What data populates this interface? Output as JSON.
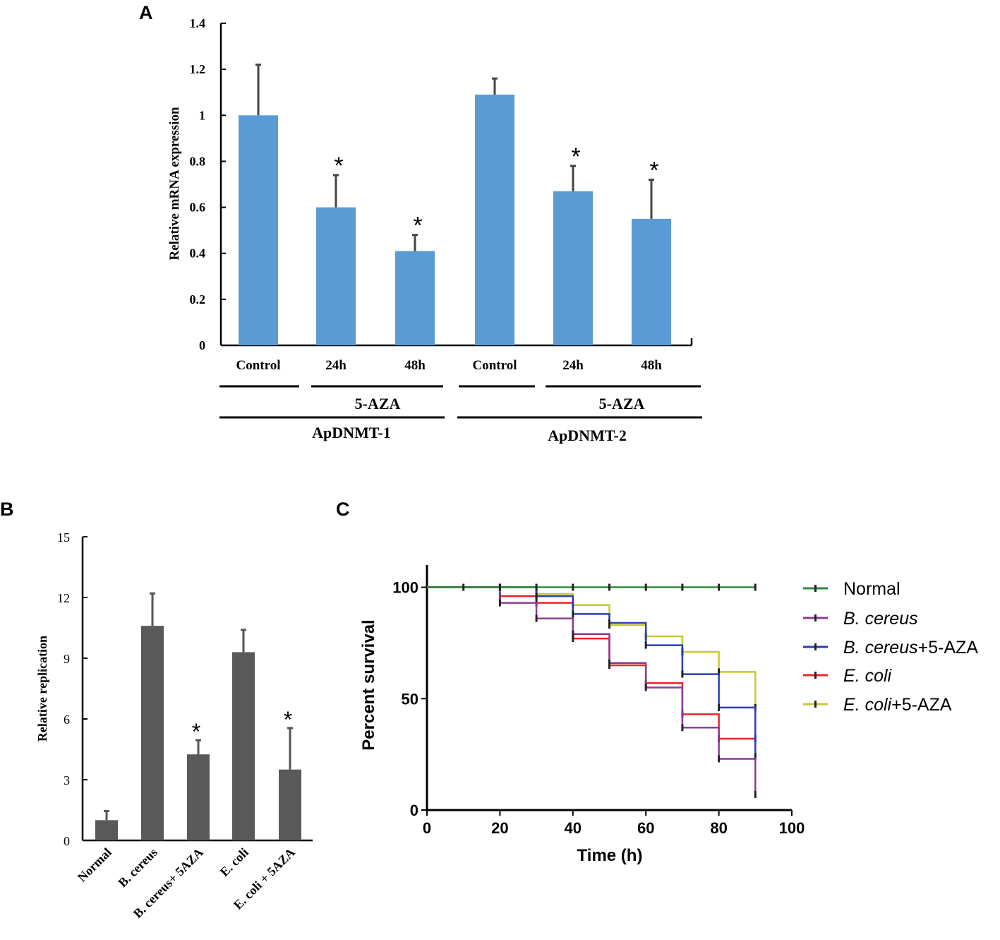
{
  "figure": {
    "panels": [
      "A",
      "B",
      "C"
    ]
  },
  "colors": {
    "barA": "#5b9bd5",
    "barB": "#595959",
    "axis": "#000000"
  },
  "chart_data": [
    {
      "panel": "A",
      "type": "bar",
      "title": "",
      "ylabel": "Relative mRNA expression",
      "xlabel": "",
      "ylim": [
        0,
        1.4
      ],
      "yticks": [
        0,
        0.2,
        0.4,
        0.6,
        0.8,
        1,
        1.2,
        1.4
      ],
      "ytick_labels": [
        "0",
        "0.2",
        "0.4",
        "0.6",
        "0.8",
        "1",
        "1.2",
        "1.4"
      ],
      "categories": [
        "Control",
        "24h",
        "48h",
        "Control",
        "24h",
        "48h"
      ],
      "values": [
        1.0,
        0.6,
        0.41,
        1.09,
        0.67,
        0.55
      ],
      "errors": [
        0.22,
        0.14,
        0.07,
        0.07,
        0.11,
        0.17
      ],
      "significance": [
        "",
        "*",
        "*",
        "",
        "*",
        "*"
      ],
      "treatment_labels": [
        "5-AZA",
        "5-AZA"
      ],
      "gene_labels": [
        "ApDNMT-1",
        "ApDNMT-2"
      ],
      "bar_color": "#5b9bd5"
    },
    {
      "panel": "B",
      "type": "bar",
      "title": "",
      "ylabel": "Relative replication",
      "xlabel": "",
      "ylim": [
        0,
        15
      ],
      "yticks": [
        0,
        3,
        6,
        9,
        12,
        15
      ],
      "ytick_labels": [
        "0",
        "3",
        "6",
        "9",
        "12",
        "15"
      ],
      "categories": [
        "Normal",
        "B. cereus",
        "B. cereus+ 5AZA",
        "E. coli",
        "E. coli + 5AZA"
      ],
      "values": [
        1.0,
        10.6,
        4.25,
        9.3,
        3.5
      ],
      "errors": [
        0.45,
        1.6,
        0.7,
        1.1,
        2.05
      ],
      "significance": [
        "",
        "",
        "*",
        "",
        "*"
      ],
      "bar_color": "#595959"
    },
    {
      "panel": "C",
      "type": "line",
      "subtype": "survival-step",
      "title": "",
      "xlabel": "Time (h)",
      "ylabel": "Percent survival",
      "xlim": [
        0,
        100
      ],
      "ylim": [
        0,
        110
      ],
      "xticks": [
        0,
        20,
        40,
        60,
        80,
        100
      ],
      "yticks": [
        0,
        50,
        100
      ],
      "legend_position": "right",
      "series": [
        {
          "name": "Normal",
          "italic": "",
          "suffix": "",
          "color": "#2e8b3a",
          "x": [
            0,
            90
          ],
          "y": [
            100,
            100
          ],
          "censor_x": [
            10,
            20,
            30,
            40,
            50,
            60,
            70,
            80,
            90
          ]
        },
        {
          "name": "B. cereus",
          "italic": "B. cereus",
          "suffix": "",
          "color": "#8e3a9a",
          "x": [
            0,
            20,
            30,
            40,
            50,
            60,
            70,
            80,
            90
          ],
          "y": [
            100,
            93,
            86,
            79,
            66,
            55,
            37,
            23,
            7
          ],
          "censor_x": [
            20,
            30,
            40,
            50,
            60,
            70,
            80,
            90
          ]
        },
        {
          "name": "B. cereus+5-AZA",
          "italic": "B. cereus",
          "suffix": "+5-AZA",
          "color": "#2a3fb5",
          "x": [
            0,
            20,
            30,
            40,
            50,
            60,
            70,
            80,
            90
          ],
          "y": [
            100,
            100,
            96,
            88,
            84,
            74,
            61,
            46,
            24
          ],
          "censor_x": [
            20,
            30,
            40,
            50,
            60,
            70,
            80,
            90
          ]
        },
        {
          "name": "E. coli",
          "italic": "E. coli",
          "suffix": "",
          "color": "#e8242c",
          "x": [
            0,
            20,
            30,
            40,
            50,
            60,
            70,
            80,
            90
          ],
          "y": [
            100,
            96,
            93,
            77,
            65,
            57,
            43,
            32,
            32
          ],
          "censor_x": [
            20,
            30,
            40,
            50,
            60,
            70,
            80,
            90
          ]
        },
        {
          "name": "E. coli+5-AZA",
          "italic": "E. coli",
          "suffix": "+5-AZA",
          "color": "#c8c833",
          "x": [
            0,
            20,
            30,
            40,
            50,
            60,
            70,
            80,
            90
          ],
          "y": [
            100,
            100,
            97,
            92,
            83,
            78,
            71,
            62,
            46
          ],
          "censor_x": [
            20,
            30,
            40,
            50,
            60,
            70,
            80,
            90
          ]
        }
      ]
    }
  ]
}
